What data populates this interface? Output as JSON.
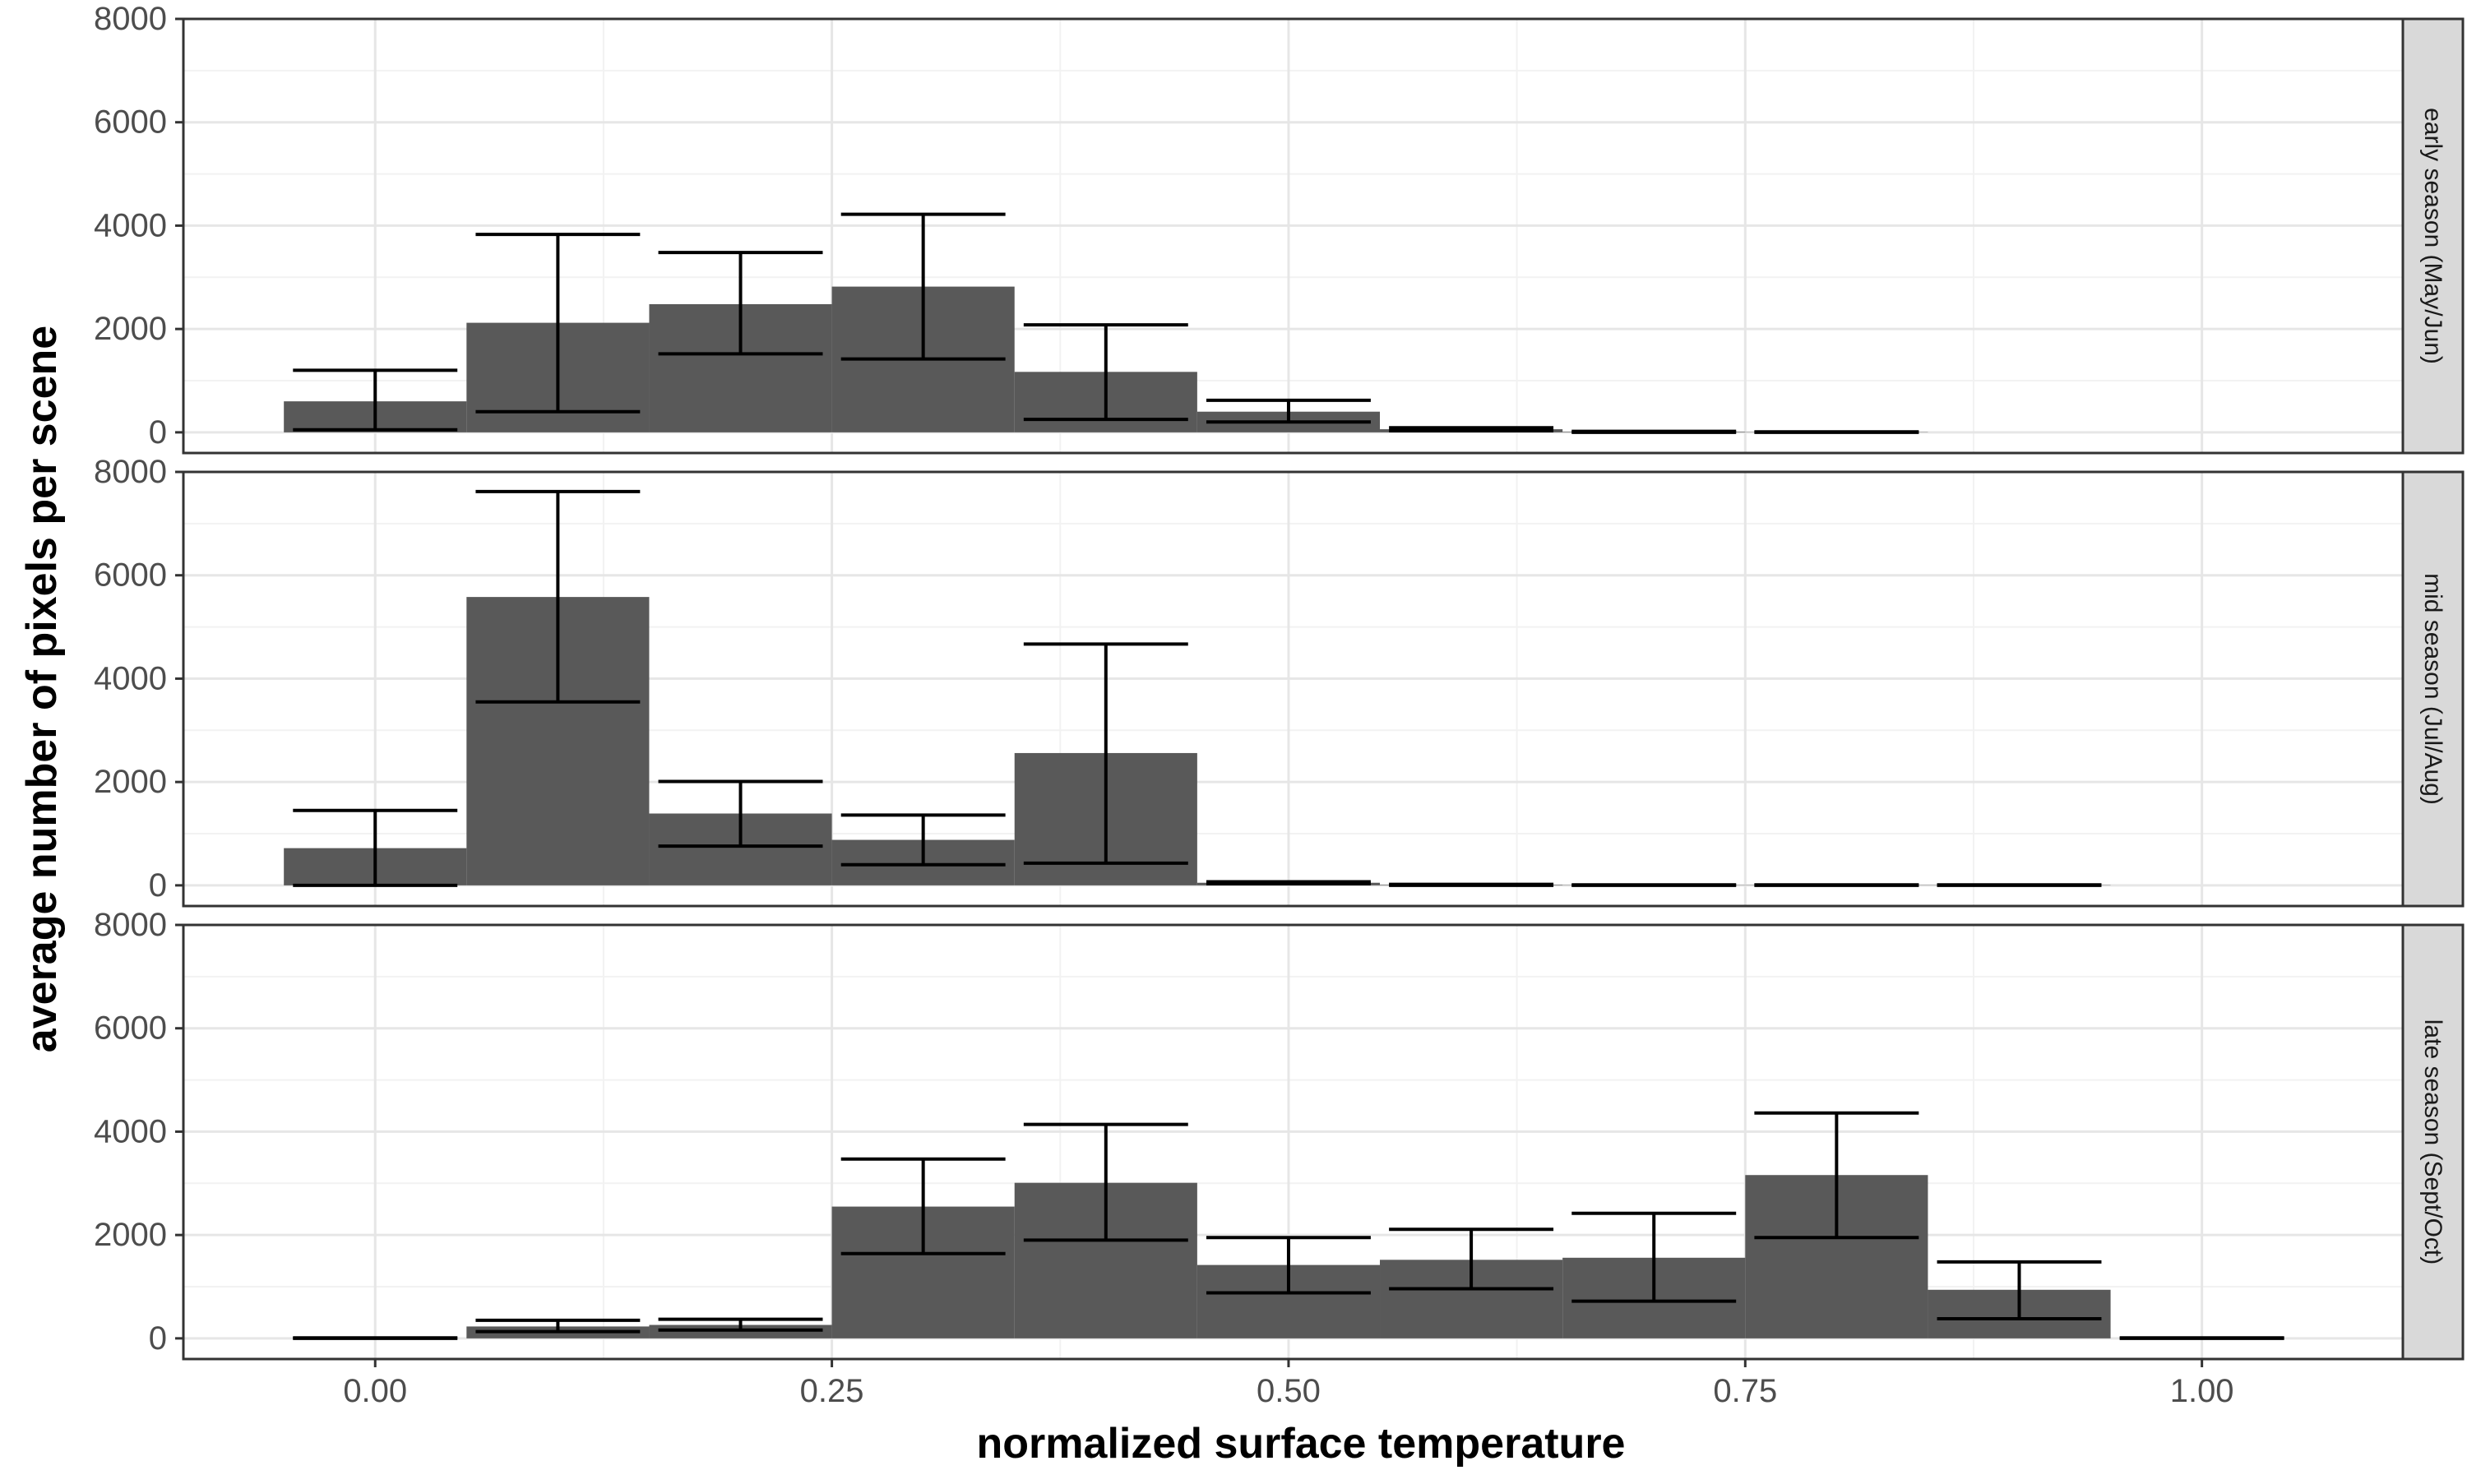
{
  "chart_data": {
    "type": "bar",
    "subtype": "faceted histogram with error bars",
    "xlabel": "normalized surface temperature",
    "ylabel": "average number of pixels per scene",
    "x_ticks": [
      0,
      0.25,
      0.5,
      0.75,
      1
    ],
    "x_tick_labels": [
      "0.00",
      "0.25",
      "0.50",
      "0.75",
      "1.00"
    ],
    "y_ticks": [
      0,
      2000,
      4000,
      6000,
      8000
    ],
    "y_tick_labels": [
      "0",
      "2000",
      "4000",
      "6000",
      "8000"
    ],
    "xlim": [
      -0.105,
      1.11
    ],
    "ylim": [
      -400,
      8000
    ],
    "bin_width": 0.1,
    "grid": true,
    "bar_color": "#595959",
    "panels": [
      {
        "label": "early season (May/Jun)",
        "bins": [
          {
            "x": 0.0,
            "value": 600,
            "low": 50,
            "high": 1200
          },
          {
            "x": 0.1,
            "value": 2120,
            "low": 400,
            "high": 3830
          },
          {
            "x": 0.2,
            "value": 2480,
            "low": 1520,
            "high": 3480
          },
          {
            "x": 0.3,
            "value": 2820,
            "low": 1420,
            "high": 4220
          },
          {
            "x": 0.4,
            "value": 1170,
            "low": 250,
            "high": 2080
          },
          {
            "x": 0.5,
            "value": 400,
            "low": 200,
            "high": 620
          },
          {
            "x": 0.6,
            "value": 60,
            "low": 30,
            "high": 90
          },
          {
            "x": 0.7,
            "value": 10,
            "low": 0,
            "high": 20
          },
          {
            "x": 0.8,
            "value": 5,
            "low": 0,
            "high": 10
          }
        ]
      },
      {
        "label": "mid season (Jul/Aug)",
        "bins": [
          {
            "x": 0.0,
            "value": 720,
            "low": 0,
            "high": 1450
          },
          {
            "x": 0.1,
            "value": 5580,
            "low": 3550,
            "high": 7620
          },
          {
            "x": 0.2,
            "value": 1390,
            "low": 760,
            "high": 2010
          },
          {
            "x": 0.3,
            "value": 880,
            "low": 400,
            "high": 1360
          },
          {
            "x": 0.4,
            "value": 2560,
            "low": 430,
            "high": 4670
          },
          {
            "x": 0.5,
            "value": 50,
            "low": 30,
            "high": 70
          },
          {
            "x": 0.6,
            "value": 10,
            "low": 0,
            "high": 20
          },
          {
            "x": 0.7,
            "value": 5,
            "low": 0,
            "high": 10
          },
          {
            "x": 0.8,
            "value": 5,
            "low": 0,
            "high": 10
          },
          {
            "x": 0.9,
            "value": 5,
            "low": 0,
            "high": 10
          }
        ]
      },
      {
        "label": "late season (Sept/Oct)",
        "bins": [
          {
            "x": 0.0,
            "value": 0,
            "low": 0,
            "high": 10
          },
          {
            "x": 0.1,
            "value": 230,
            "low": 130,
            "high": 350
          },
          {
            "x": 0.2,
            "value": 260,
            "low": 160,
            "high": 370
          },
          {
            "x": 0.3,
            "value": 2550,
            "low": 1640,
            "high": 3470
          },
          {
            "x": 0.4,
            "value": 3010,
            "low": 1900,
            "high": 4140
          },
          {
            "x": 0.5,
            "value": 1420,
            "low": 880,
            "high": 1950
          },
          {
            "x": 0.6,
            "value": 1520,
            "low": 960,
            "high": 2110
          },
          {
            "x": 0.7,
            "value": 1560,
            "low": 720,
            "high": 2420
          },
          {
            "x": 0.8,
            "value": 3160,
            "low": 1950,
            "high": 4360
          },
          {
            "x": 0.9,
            "value": 940,
            "low": 380,
            "high": 1480
          },
          {
            "x": 1.0,
            "value": 0,
            "low": 0,
            "high": 10
          }
        ]
      }
    ]
  }
}
